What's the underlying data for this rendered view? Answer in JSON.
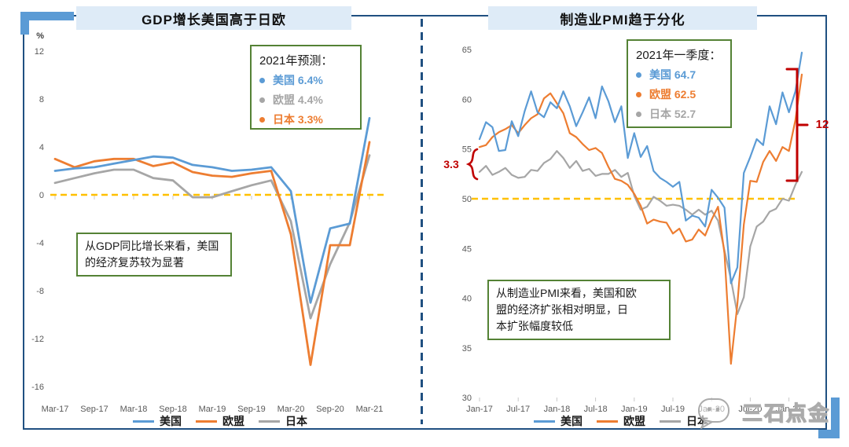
{
  "colors": {
    "us_blue": "#5B9BD5",
    "eu_orange": "#ED7D31",
    "jp_gray": "#A6A6A6",
    "reference_yellow": "#FFC000",
    "annotation_red": "#C00000",
    "box_green": "#548235",
    "title_bg": "#DEEBF7",
    "frame_blue": "#205081",
    "corner_accent": "#5B9BD5"
  },
  "watermark": {
    "icon": "wechat-icon",
    "text": "三石点金"
  },
  "left_panel": {
    "forecast_box": {
      "heading": "2021年预测：",
      "items": [
        {
          "text": "美国 6.4%",
          "color": "#5B9BD5"
        },
        {
          "text": "欧盟 4.4%",
          "color": "#A6A6A6"
        },
        {
          "text": "日本 3.3%",
          "color": "#ED7D31"
        }
      ]
    },
    "annotation_lines": [
      "从GDP同比增长来看，美国",
      "的经济复苏较为显著"
    ]
  },
  "right_panel": {
    "quarter_box": {
      "heading": "2021年一季度：",
      "items": [
        {
          "text": "美国 64.7",
          "color": "#5B9BD5"
        },
        {
          "text": "欧盟 62.5",
          "color": "#ED7D31"
        },
        {
          "text": "日本 52.7",
          "color": "#A6A6A6"
        }
      ]
    },
    "annotation_lines": [
      "从制造业PMI来看，美国和欧",
      "盟的经济扩张相对明显，日",
      "本扩张幅度较低"
    ],
    "gap_brackets": [
      {
        "label": "3.3",
        "value": 3.3
      },
      {
        "label": "12",
        "value": 12
      }
    ]
  },
  "chart_data": [
    {
      "type": "line",
      "title": "GDP增长美国高于日欧",
      "ylabel": "%",
      "ylim": [
        -16,
        12
      ],
      "yticks": [
        12,
        8,
        4,
        0,
        -4,
        -8,
        -12,
        -16
      ],
      "x_labels": [
        "Mar-17",
        "Sep-17",
        "Mar-18",
        "Sep-18",
        "Mar-19",
        "Sep-19",
        "Mar-20",
        "Sep-20",
        "Mar-21"
      ],
      "frequency": "quarterly",
      "points_per_label": 2,
      "legend_position": "bottom",
      "grid": false,
      "reference_line": {
        "y": 0,
        "style": "dashed",
        "color": "#FFC000"
      },
      "series": [
        {
          "name": "美国",
          "color": "#5B9BD5",
          "values": [
            2.0,
            2.2,
            2.3,
            2.6,
            2.9,
            3.2,
            3.1,
            2.5,
            2.3,
            2.0,
            2.1,
            2.3,
            0.3,
            -9.0,
            -2.8,
            -2.4,
            6.4
          ]
        },
        {
          "name": "欧盟",
          "color": "#ED7D31",
          "values": [
            3.0,
            2.3,
            2.8,
            3.0,
            3.0,
            2.4,
            2.7,
            1.9,
            1.6,
            1.5,
            1.8,
            2.0,
            -3.3,
            -14.2,
            -4.2,
            -4.2,
            4.4
          ]
        },
        {
          "name": "日本",
          "color": "#A6A6A6",
          "values": [
            1.0,
            1.4,
            1.8,
            2.1,
            2.1,
            1.4,
            1.2,
            -0.2,
            -0.2,
            0.3,
            0.8,
            1.2,
            -2.2,
            -10.3,
            -5.8,
            -2.3,
            3.3
          ]
        }
      ]
    },
    {
      "type": "line",
      "title": "制造业PMI趋于分化",
      "ylabel": "",
      "ylim": [
        30,
        65
      ],
      "yticks": [
        65,
        60,
        55,
        50,
        45,
        40,
        35,
        30
      ],
      "x_labels": [
        "Jan-17",
        "Jul-17",
        "Jan-18",
        "Jul-18",
        "Jan-19",
        "Jul-19",
        "Jan-20",
        "Jul-20",
        "Jan-21"
      ],
      "frequency": "monthly",
      "points_per_label": 6,
      "legend_position": "bottom",
      "grid": false,
      "reference_line": {
        "y": 50,
        "style": "dashed",
        "color": "#FFC000"
      },
      "series": [
        {
          "name": "美国",
          "color": "#5B9BD5",
          "values": [
            56.0,
            57.7,
            57.2,
            54.8,
            54.9,
            57.8,
            56.3,
            58.8,
            60.8,
            58.7,
            58.2,
            59.7,
            59.1,
            60.8,
            59.3,
            57.3,
            58.7,
            60.2,
            58.1,
            61.3,
            59.8,
            57.7,
            59.3,
            54.1,
            56.6,
            54.2,
            55.3,
            52.8,
            52.1,
            51.7,
            51.2,
            51.7,
            47.8,
            48.3,
            48.1,
            47.2,
            50.9,
            50.1,
            49.1,
            41.5,
            43.1,
            52.6,
            54.2,
            56.0,
            55.4,
            59.3,
            57.5,
            60.7,
            58.7,
            60.8,
            64.7
          ]
        },
        {
          "name": "欧盟",
          "color": "#ED7D31",
          "values": [
            55.2,
            55.4,
            56.2,
            56.7,
            57.0,
            57.4,
            56.6,
            57.4,
            58.1,
            58.5,
            60.1,
            60.6,
            59.6,
            58.6,
            56.6,
            56.2,
            55.5,
            54.9,
            55.1,
            54.6,
            53.2,
            52.0,
            51.8,
            51.4,
            50.5,
            49.3,
            47.5,
            47.9,
            47.7,
            47.6,
            46.5,
            47.0,
            45.7,
            45.9,
            46.9,
            46.3,
            47.9,
            49.2,
            44.5,
            33.4,
            39.4,
            47.4,
            51.8,
            51.7,
            53.7,
            54.8,
            53.8,
            55.2,
            54.8,
            57.9,
            62.5
          ]
        },
        {
          "name": "日本",
          "color": "#A6A6A6",
          "values": [
            52.7,
            53.3,
            52.4,
            52.7,
            53.1,
            52.4,
            52.1,
            52.2,
            52.9,
            52.8,
            53.6,
            54.0,
            54.8,
            54.1,
            53.1,
            53.8,
            52.8,
            53.0,
            52.3,
            52.5,
            52.5,
            52.9,
            52.2,
            52.6,
            50.3,
            48.9,
            49.2,
            50.2,
            49.8,
            49.3,
            49.4,
            49.3,
            48.9,
            48.4,
            48.9,
            48.4,
            48.8,
            47.8,
            44.8,
            41.9,
            38.4,
            40.1,
            45.2,
            47.2,
            47.7,
            48.7,
            49.0,
            50.0,
            49.8,
            51.4,
            52.7
          ]
        }
      ]
    }
  ]
}
